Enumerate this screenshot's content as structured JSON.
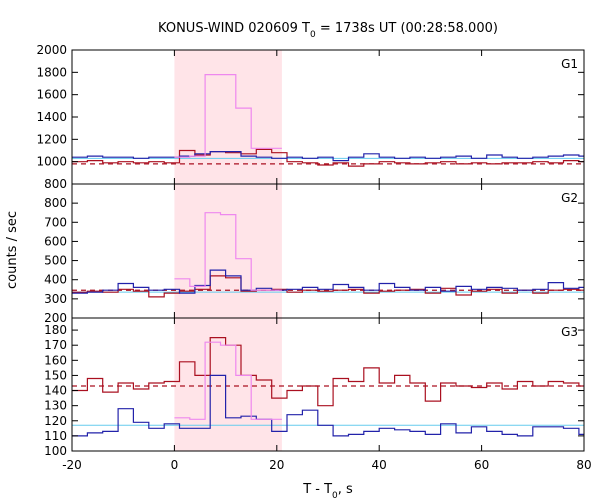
{
  "chart_data": {
    "type": "line",
    "title": "KONUS-WIND 020609 T",
    "title_sub": "0",
    "title_rest": " = 1738s UT (00:28:58.000)",
    "xlabel": "T - T",
    "xlabel_sub": "0",
    "xlabel_rest": ", s",
    "ylabel": "counts / sec",
    "xlim": [
      -20,
      80
    ],
    "x_ticks": [
      -20,
      0,
      20,
      40,
      60,
      80
    ],
    "shaded_interval": [
      0,
      21
    ],
    "colors": {
      "red": "#aa1020",
      "blue": "#2222aa",
      "pink": "#ee88ee",
      "cyan": "#66ccee",
      "shade": "#ffe4e8"
    },
    "panels": [
      {
        "label": "G1",
        "ylim": [
          800,
          2000
        ],
        "y_ticks": [
          800,
          1000,
          1200,
          1400,
          1600,
          1800,
          2000
        ],
        "red_dashed_level": 980,
        "cyan_level": 1030,
        "bin_edges": [
          -20,
          -17,
          -14,
          -11,
          -8,
          -5,
          -2,
          1,
          4,
          7,
          10,
          13,
          16,
          19,
          22,
          25,
          28,
          31,
          34,
          37,
          40,
          43,
          46,
          49,
          52,
          55,
          58,
          61,
          64,
          67,
          70,
          73,
          76,
          79,
          80
        ],
        "series": [
          {
            "color": "red",
            "values": [
              1000,
              1010,
              990,
              1000,
              990,
              1000,
              990,
              1100,
              1060,
              1090,
              1080,
              1070,
              1110,
              1080,
              1000,
              990,
              970,
              990,
              960,
              980,
              1000,
              990,
              980,
              990,
              1000,
              980,
              990,
              980,
              990,
              990,
              1000,
              990,
              1010,
              1000
            ]
          },
          {
            "color": "blue",
            "values": [
              1040,
              1050,
              1040,
              1040,
              1030,
              1040,
              1040,
              1050,
              1070,
              1090,
              1090,
              1050,
              1040,
              1030,
              1040,
              1030,
              1040,
              1010,
              1040,
              1070,
              1040,
              1030,
              1040,
              1030,
              1040,
              1050,
              1030,
              1060,
              1040,
              1030,
              1040,
              1050,
              1060,
              1050
            ]
          }
        ],
        "pink_x": [
          0,
          3,
          6,
          9,
          12,
          15,
          21
        ],
        "pink_values": [
          1040,
          1050,
          1780,
          1780,
          1480,
          1120
        ]
      },
      {
        "label": "G2",
        "ylim": [
          200,
          900
        ],
        "y_ticks": [
          200,
          300,
          400,
          500,
          600,
          700,
          800
        ],
        "red_dashed_level": 345,
        "cyan_level": 335,
        "bin_edges": [
          -20,
          -17,
          -14,
          -11,
          -8,
          -5,
          -2,
          1,
          4,
          7,
          10,
          13,
          16,
          19,
          22,
          25,
          28,
          31,
          34,
          37,
          40,
          43,
          46,
          49,
          52,
          55,
          58,
          61,
          64,
          67,
          70,
          73,
          76,
          79,
          80
        ],
        "series": [
          {
            "color": "red",
            "values": [
              335,
              340,
              335,
              350,
              340,
              310,
              330,
              340,
              350,
              420,
              410,
              340,
              345,
              350,
              335,
              345,
              340,
              345,
              350,
              330,
              340,
              345,
              350,
              330,
              355,
              320,
              340,
              350,
              330,
              345,
              330,
              345,
              350,
              345
            ]
          },
          {
            "color": "blue",
            "values": [
              330,
              335,
              345,
              380,
              360,
              345,
              350,
              330,
              370,
              450,
              420,
              345,
              355,
              345,
              350,
              360,
              350,
              375,
              360,
              345,
              380,
              360,
              345,
              360,
              340,
              365,
              350,
              360,
              355,
              345,
              350,
              385,
              355,
              360
            ]
          }
        ],
        "pink_x": [
          0,
          3,
          6,
          9,
          12,
          15,
          21
        ],
        "pink_values": [
          405,
          365,
          750,
          740,
          510,
          345
        ]
      },
      {
        "label": "G3",
        "ylim": [
          100,
          188
        ],
        "y_ticks": [
          100,
          110,
          120,
          130,
          140,
          150,
          160,
          170,
          180
        ],
        "red_dashed_level": 143,
        "cyan_level": 117,
        "bin_edges": [
          -20,
          -17,
          -14,
          -11,
          -8,
          -5,
          -2,
          1,
          4,
          7,
          10,
          13,
          16,
          19,
          22,
          25,
          28,
          31,
          34,
          37,
          40,
          43,
          46,
          49,
          52,
          55,
          58,
          61,
          64,
          67,
          70,
          73,
          76,
          79,
          80
        ],
        "series": [
          {
            "color": "red",
            "values": [
              140,
              148,
              139,
              145,
              141,
              145,
              146,
              159,
              150,
              175,
              170,
              150,
              147,
              135,
              140,
              143,
              130,
              148,
              146,
              155,
              145,
              150,
              145,
              133,
              145,
              143,
              142,
              145,
              141,
              146,
              143,
              146,
              145,
              143
            ]
          },
          {
            "color": "blue",
            "values": [
              110,
              112,
              113,
              128,
              119,
              115,
              118,
              115,
              115,
              150,
              122,
              123,
              121,
              113,
              124,
              127,
              117,
              110,
              111,
              113,
              115,
              114,
              113,
              111,
              118,
              112,
              116,
              113,
              111,
              110,
              116,
              116,
              115,
              111
            ]
          }
        ],
        "pink_x": [
          0,
          3,
          6,
          9,
          12,
          15,
          21
        ],
        "pink_values": [
          122,
          121,
          172,
          170,
          150,
          121
        ]
      }
    ]
  }
}
